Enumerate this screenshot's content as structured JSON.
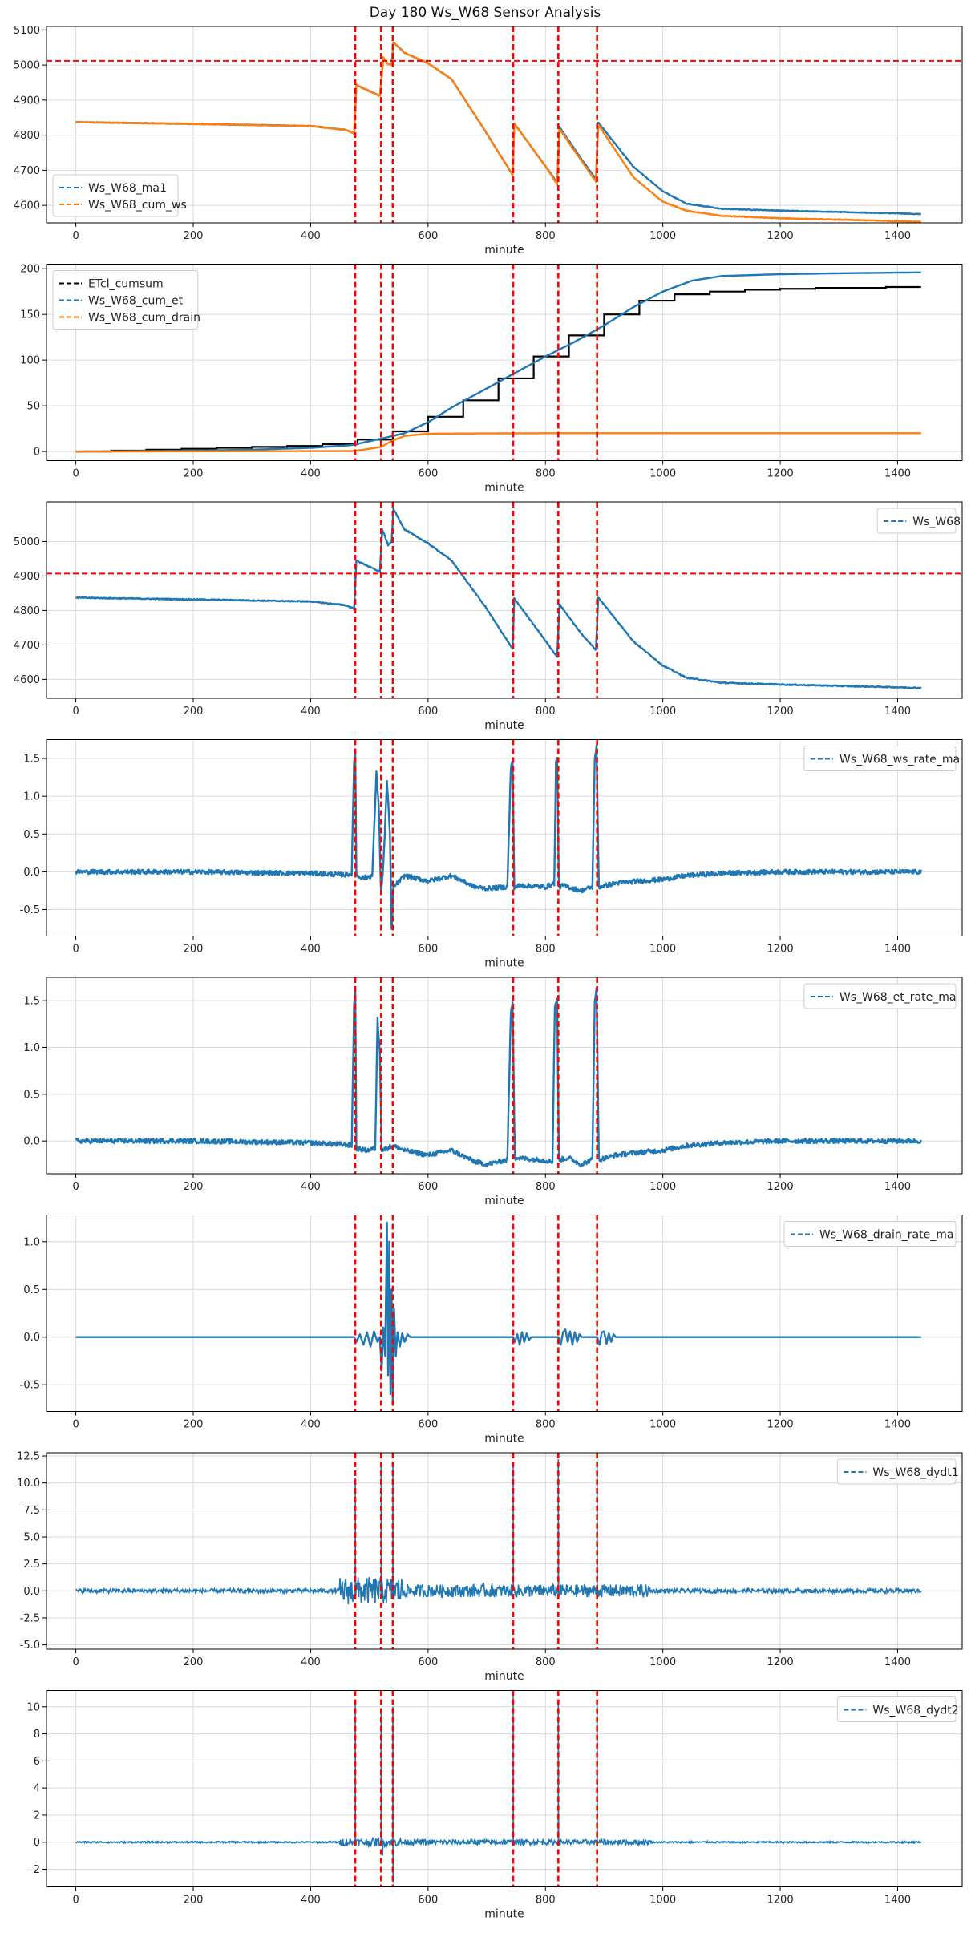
{
  "title": "Day 180 Ws_W68 Sensor Analysis",
  "colors": {
    "blue": "#1f77b4",
    "orange": "#ff7f0e",
    "black": "#000000",
    "red": "#ff0000",
    "grid": "#d9d9d9"
  },
  "vlines": [
    476,
    520,
    540,
    745,
    822,
    888
  ],
  "chart_data": [
    {
      "type": "line",
      "xlabel": "minute",
      "xlim": [
        -50,
        1510
      ],
      "xticks": [
        0,
        200,
        400,
        600,
        800,
        1000,
        1200,
        1400
      ],
      "ylim": [
        4550,
        5110
      ],
      "yticks": [
        4600,
        4700,
        4800,
        4900,
        5000,
        5100
      ],
      "hline": 5012,
      "legend": "upper-left",
      "series": [
        {
          "name": "Ws_W68_ma1",
          "color": "blue",
          "noise": 1,
          "x": [
            0,
            200,
            400,
            460,
            474,
            478,
            518,
            524,
            532,
            538,
            541,
            560,
            600,
            640,
            700,
            744,
            747,
            800,
            820,
            824,
            860,
            886,
            890,
            950,
            1000,
            1040,
            1100,
            1200,
            1300,
            1400,
            1440
          ],
          "y": [
            4837,
            4832,
            4826,
            4815,
            4805,
            4943,
            4912,
            5022,
            5002,
            5002,
            5065,
            5035,
            5005,
            4960,
            4805,
            4687,
            4833,
            4712,
            4665,
            4823,
            4735,
            4675,
            4836,
            4710,
            4640,
            4605,
            4590,
            4585,
            4581,
            4577,
            4575
          ]
        },
        {
          "name": "Ws_W68_cum_ws",
          "color": "orange",
          "noise": 1,
          "x": [
            0,
            200,
            400,
            460,
            474,
            478,
            518,
            524,
            532,
            538,
            541,
            560,
            600,
            640,
            700,
            744,
            747,
            800,
            820,
            824,
            860,
            886,
            890,
            950,
            1000,
            1040,
            1100,
            1200,
            1300,
            1400,
            1440
          ],
          "y": [
            4837,
            4832,
            4826,
            4815,
            4805,
            4943,
            4912,
            5022,
            5002,
            5002,
            5065,
            5035,
            5005,
            4960,
            4805,
            4687,
            4833,
            4712,
            4660,
            4818,
            4730,
            4668,
            4830,
            4680,
            4610,
            4585,
            4570,
            4563,
            4559,
            4555,
            4553
          ]
        }
      ]
    },
    {
      "type": "line",
      "xlabel": "minute",
      "xlim": [
        -50,
        1510
      ],
      "xticks": [
        0,
        200,
        400,
        600,
        800,
        1000,
        1200,
        1400
      ],
      "ylim": [
        -10,
        205
      ],
      "yticks": [
        0,
        50,
        100,
        150,
        200
      ],
      "legend": "upper-left",
      "series": [
        {
          "name": "ETcl_cumsum",
          "color": "black",
          "step": true,
          "x": [
            0,
            60,
            120,
            180,
            240,
            300,
            360,
            420,
            480,
            540,
            600,
            660,
            720,
            780,
            840,
            900,
            960,
            1020,
            1080,
            1140,
            1200,
            1260,
            1320,
            1380,
            1440
          ],
          "y": [
            0,
            1,
            2,
            3,
            4,
            5,
            6,
            8,
            13,
            22,
            38,
            56,
            80,
            104,
            127,
            150,
            165,
            172,
            175,
            177,
            178,
            179,
            179,
            180,
            180
          ]
        },
        {
          "name": "Ws_W68_cum_et",
          "color": "blue",
          "x": [
            0,
            100,
            200,
            300,
            400,
            470,
            520,
            560,
            600,
            640,
            680,
            720,
            760,
            800,
            850,
            900,
            950,
            1000,
            1050,
            1100,
            1200,
            1300,
            1440
          ],
          "y": [
            0,
            0.5,
            1,
            2,
            4,
            7,
            14,
            20,
            32,
            48,
            62,
            76,
            90,
            104,
            120,
            138,
            158,
            175,
            187,
            192,
            194,
            195,
            196
          ]
        },
        {
          "name": "Ws_W68_cum_drain",
          "color": "orange",
          "x": [
            0,
            470,
            490,
            520,
            540,
            560,
            600,
            800,
            1440
          ],
          "y": [
            0,
            0.5,
            2,
            5,
            12,
            17,
            19.5,
            20,
            20
          ]
        }
      ]
    },
    {
      "type": "line",
      "xlabel": "minute",
      "xlim": [
        -50,
        1510
      ],
      "xticks": [
        0,
        200,
        400,
        600,
        800,
        1000,
        1200,
        1400
      ],
      "ylim": [
        4545,
        5115
      ],
      "yticks": [
        4600,
        4700,
        4800,
        4900,
        5000
      ],
      "hline": 4907,
      "legend": "upper-right",
      "series": [
        {
          "name": "Ws_W68",
          "color": "blue",
          "noise": 1.5,
          "x": [
            0,
            200,
            400,
            460,
            474,
            478,
            518,
            522,
            532,
            538,
            541,
            560,
            600,
            640,
            700,
            744,
            747,
            800,
            820,
            824,
            860,
            886,
            890,
            950,
            1000,
            1040,
            1100,
            1200,
            1300,
            1400,
            1440
          ],
          "y": [
            4837,
            4832,
            4826,
            4815,
            4805,
            4945,
            4912,
            5035,
            4990,
            5000,
            5095,
            5035,
            4995,
            4945,
            4805,
            4688,
            4835,
            4712,
            4665,
            4818,
            4735,
            4685,
            4838,
            4710,
            4640,
            4605,
            4590,
            4585,
            4581,
            4577,
            4575
          ]
        }
      ]
    },
    {
      "type": "line",
      "xlabel": "minute",
      "xlim": [
        -50,
        1510
      ],
      "xticks": [
        0,
        200,
        400,
        600,
        800,
        1000,
        1200,
        1400
      ],
      "ylim": [
        -0.85,
        1.75
      ],
      "yticks": [
        -0.5,
        0.0,
        0.5,
        1.0,
        1.5
      ],
      "legend": "upper-right",
      "series": [
        {
          "name": "Ws_W68_ws_rate_ma",
          "color": "blue",
          "noise": 0.03,
          "x": [
            0,
            200,
            300,
            400,
            460,
            470,
            474,
            476,
            478,
            490,
            505,
            512,
            516,
            520,
            524,
            530,
            535,
            538,
            541,
            548,
            560,
            600,
            640,
            680,
            700,
            735,
            741,
            744,
            747,
            760,
            800,
            815,
            818,
            820,
            823,
            830,
            860,
            880,
            884,
            887,
            891,
            920,
            960,
            1000,
            1040,
            1100,
            1200,
            1300,
            1440
          ],
          "y": [
            0,
            0,
            -0.01,
            -0.02,
            -0.04,
            -0.02,
            1.45,
            1.6,
            -0.05,
            -0.08,
            -0.05,
            1.3,
            0.9,
            -0.3,
            0.1,
            1.2,
            0.5,
            -0.78,
            -0.2,
            -0.15,
            -0.05,
            -0.12,
            -0.05,
            -0.2,
            -0.22,
            -0.2,
            1.35,
            1.5,
            -0.2,
            -0.18,
            -0.2,
            -0.15,
            1.45,
            1.5,
            -0.2,
            -0.18,
            -0.25,
            -0.2,
            1.5,
            1.65,
            -0.2,
            -0.15,
            -0.12,
            -0.1,
            -0.05,
            -0.02,
            0,
            0,
            0
          ]
        }
      ]
    },
    {
      "type": "line",
      "xlabel": "minute",
      "xlim": [
        -50,
        1510
      ],
      "xticks": [
        0,
        200,
        400,
        600,
        800,
        1000,
        1200,
        1400
      ],
      "ylim": [
        -0.35,
        1.75
      ],
      "yticks": [
        0.0,
        0.5,
        1.0,
        1.5
      ],
      "legend": "upper-right",
      "series": [
        {
          "name": "Ws_W68_et_rate_ma",
          "color": "blue",
          "noise": 0.025,
          "x": [
            0,
            200,
            300,
            400,
            460,
            470,
            474,
            476,
            478,
            495,
            510,
            514,
            518,
            521,
            540,
            560,
            600,
            640,
            680,
            700,
            735,
            741,
            744,
            748,
            790,
            812,
            816,
            820,
            823,
            840,
            860,
            880,
            884,
            887,
            891,
            920,
            960,
            1000,
            1040,
            1100,
            1200,
            1440
          ],
          "y": [
            0,
            0,
            -0.01,
            -0.02,
            -0.04,
            -0.05,
            1.45,
            1.6,
            -0.08,
            -0.1,
            -0.08,
            1.3,
            0.95,
            -0.1,
            -0.05,
            -0.1,
            -0.15,
            -0.1,
            -0.22,
            -0.25,
            -0.2,
            1.35,
            1.5,
            -0.18,
            -0.2,
            -0.22,
            1.45,
            1.5,
            -0.2,
            -0.18,
            -0.25,
            -0.2,
            1.5,
            1.65,
            -0.2,
            -0.15,
            -0.12,
            -0.1,
            -0.05,
            -0.02,
            0,
            0
          ]
        }
      ]
    },
    {
      "type": "line",
      "xlabel": "minute",
      "xlim": [
        -50,
        1510
      ],
      "xticks": [
        0,
        200,
        400,
        600,
        800,
        1000,
        1200,
        1400
      ],
      "ylim": [
        -0.78,
        1.28
      ],
      "yticks": [
        -0.5,
        0.0,
        0.5,
        1.0
      ],
      "legend": "upper-right",
      "series": [
        {
          "name": "Ws_W68_drain_rate_ma",
          "color": "blue",
          "x": [
            0,
            474,
            478,
            484,
            490,
            496,
            502,
            508,
            514,
            518,
            521,
            524,
            527,
            530,
            532,
            534,
            536,
            538,
            540,
            542,
            545,
            548,
            552,
            556,
            560,
            565,
            570,
            575,
            745,
            748,
            752,
            756,
            760,
            764,
            768,
            772,
            776,
            822,
            826,
            830,
            834,
            838,
            842,
            846,
            850,
            854,
            858,
            862,
            888,
            892,
            896,
            900,
            904,
            908,
            912,
            916,
            920,
            1440
          ],
          "y": [
            0,
            0,
            -0.05,
            0.03,
            -0.08,
            0.05,
            -0.1,
            0.06,
            -0.05,
            0.0,
            -0.35,
            0.1,
            -0.2,
            1.2,
            -0.4,
            1.0,
            -0.6,
            0.5,
            -0.7,
            0.3,
            -0.2,
            0.05,
            -0.1,
            0.04,
            -0.05,
            0.03,
            0.0,
            0,
            0,
            -0.05,
            0.03,
            -0.08,
            0.05,
            -0.05,
            0.04,
            -0.03,
            0,
            0,
            -0.08,
            0.05,
            0.08,
            -0.05,
            0.06,
            -0.08,
            0.05,
            -0.05,
            0.03,
            0,
            0,
            -0.08,
            0.05,
            0.06,
            -0.07,
            0.04,
            -0.05,
            0.03,
            0,
            0
          ]
        }
      ]
    },
    {
      "type": "line",
      "xlabel": "minute",
      "xlim": [
        -50,
        1510
      ],
      "xticks": [
        0,
        200,
        400,
        600,
        800,
        1000,
        1200,
        1400
      ],
      "ylim": [
        -5.4,
        12.8
      ],
      "yticks": [
        -5.0,
        -2.5,
        0.0,
        2.5,
        5.0,
        7.5,
        10.0,
        12.5
      ],
      "legend": "upper-right",
      "series": [
        {
          "name": "Ws_W68_dydt1",
          "color": "blue",
          "noise_bands": [
            [
              0,
              450,
              0.2
            ],
            [
              450,
              560,
              1.3
            ],
            [
              560,
              980,
              0.6
            ],
            [
              980,
              1440,
              0.2
            ]
          ],
          "spikes": [
            [
              476,
              10.5
            ],
            [
              520,
              11.8
            ],
            [
              540,
              12.0
            ],
            [
              745,
              11.8
            ],
            [
              822,
              12.2
            ],
            [
              888,
              11.9
            ]
          ],
          "x": [
            0,
            1440
          ],
          "y": [
            0,
            0
          ]
        }
      ]
    },
    {
      "type": "line",
      "xlabel": "minute",
      "xlim": [
        -50,
        1510
      ],
      "xticks": [
        0,
        200,
        400,
        600,
        800,
        1000,
        1200,
        1400
      ],
      "ylim": [
        -3.3,
        11.2
      ],
      "yticks": [
        -2,
        0,
        2,
        4,
        6,
        8,
        10
      ],
      "legend": "upper-right",
      "series": [
        {
          "name": "Ws_W68_dydt2",
          "color": "blue",
          "noise_bands": [
            [
              0,
              450,
              0.06
            ],
            [
              450,
              560,
              0.3
            ],
            [
              560,
              980,
              0.2
            ],
            [
              980,
              1440,
              0.06
            ]
          ],
          "spikes": [
            [
              476,
              10.3
            ],
            [
              520,
              9.5
            ],
            [
              540,
              10.0
            ],
            [
              745,
              10.8
            ],
            [
              822,
              10.5
            ],
            [
              888,
              10.2
            ]
          ],
          "dips": [
            [
              540,
              -3.0
            ],
            [
              522,
              -1.0
            ]
          ],
          "x": [
            0,
            1440
          ],
          "y": [
            0,
            0
          ]
        }
      ]
    }
  ]
}
